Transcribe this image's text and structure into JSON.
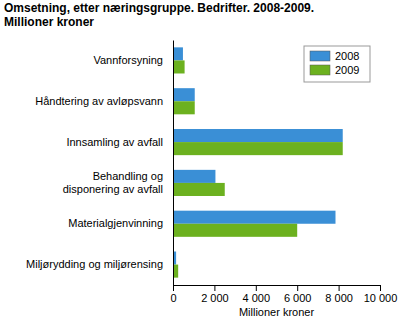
{
  "chart_data": {
    "type": "bar",
    "orientation": "horizontal",
    "title": "Omsetning, etter næringsgruppe. Bedrifter. 2008-2009.",
    "subtitle": "Millioner kroner",
    "xlabel": "Millioner kroner",
    "categories": [
      "Vannforsyning",
      "Håndtering av avløpsvann",
      "Innsamling av avfall",
      "Behandling og disponering av avfall",
      "Materialgjenvinning",
      "Miljørydding og miljørensing"
    ],
    "series": [
      {
        "name": "2008",
        "color": "#3a8fd6",
        "values": [
          480,
          1050,
          8200,
          2050,
          7850,
          150
        ]
      },
      {
        "name": "2009",
        "color": "#6cb11f",
        "values": [
          560,
          1050,
          8200,
          2500,
          6000,
          250
        ]
      }
    ],
    "xlim": [
      0,
      10000
    ],
    "xticks": [
      0,
      {
        "value": 2000,
        "label": "2 000"
      },
      {
        "value": 4000,
        "label": "4 000"
      },
      {
        "value": 6000,
        "label": "6 000"
      },
      {
        "value": 8000,
        "label": "8 000"
      },
      {
        "value": 10000,
        "label": "10 000"
      }
    ],
    "grid": false,
    "legend": "upper right"
  }
}
